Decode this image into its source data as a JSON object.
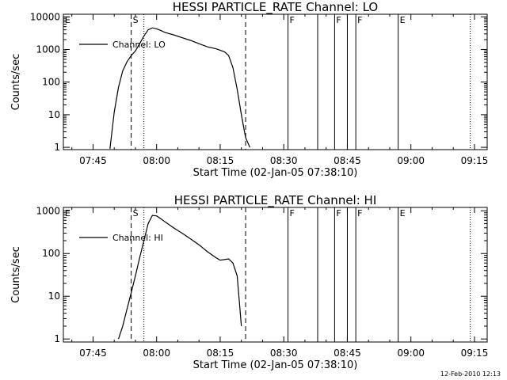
{
  "footer_stamp": "12-Feb-2010 12:13",
  "chart_data": [
    {
      "type": "line",
      "title": "HESSI PARTICLE_RATE Channel: LO",
      "xlabel": "Start Time (02-Jan-05 07:38:10)",
      "ylabel": "Counts/sec",
      "yscale": "log",
      "xlim": [
        "07:38",
        "09:18"
      ],
      "ylim": [
        0.85,
        12000
      ],
      "x_ticks": [
        "07:45",
        "08:00",
        "08:15",
        "08:30",
        "08:45",
        "09:00",
        "09:15"
      ],
      "y_ticks": [
        "1",
        "10",
        "100",
        "1000",
        "10000"
      ],
      "legend": {
        "placement": "top-left",
        "entries": [
          "Channel: LO"
        ]
      },
      "series": [
        {
          "name": "Channel: LO",
          "x": [
            "07:49",
            "07:50",
            "07:51",
            "07:52",
            "07:53",
            "07:54",
            "07:55",
            "07:56",
            "07:57",
            "07:58",
            "07:59",
            "08:00",
            "08:01",
            "08:02",
            "08:04",
            "08:06",
            "08:08",
            "08:10",
            "08:12",
            "08:14",
            "08:16",
            "08:17",
            "08:18",
            "08:19",
            "08:20",
            "08:21",
            "08:22"
          ],
          "y": [
            0.9,
            12,
            70,
            220,
            420,
            650,
            900,
            1500,
            2600,
            4000,
            4600,
            4300,
            3800,
            3300,
            2800,
            2300,
            1900,
            1500,
            1200,
            1050,
            850,
            650,
            280,
            60,
            10,
            2,
            1
          ]
        }
      ],
      "markers": [
        {
          "time": "07:38",
          "label": "E",
          "style": "dotted"
        },
        {
          "time": "07:54",
          "label": "S",
          "style": "dashed"
        },
        {
          "time": "07:57",
          "label": "",
          "style": "dotted"
        },
        {
          "time": "08:21",
          "label": "",
          "style": "dashed"
        },
        {
          "time": "08:31",
          "label": "F",
          "style": "solid"
        },
        {
          "time": "08:38",
          "label": "",
          "style": "solid"
        },
        {
          "time": "08:42",
          "label": "F",
          "style": "solid"
        },
        {
          "time": "08:45",
          "label": "",
          "style": "solid"
        },
        {
          "time": "08:47",
          "label": "F",
          "style": "solid"
        },
        {
          "time": "08:57",
          "label": "E",
          "style": "solid"
        },
        {
          "time": "09:14",
          "label": "",
          "style": "dotted"
        }
      ]
    },
    {
      "type": "line",
      "title": "HESSI PARTICLE_RATE Channel: HI",
      "xlabel": "Start Time (02-Jan-05 07:38:10)",
      "ylabel": "Counts/sec",
      "yscale": "log",
      "xlim": [
        "07:38",
        "09:18"
      ],
      "ylim": [
        0.85,
        1200
      ],
      "x_ticks": [
        "07:45",
        "08:00",
        "08:15",
        "08:30",
        "08:45",
        "09:00",
        "09:15"
      ],
      "y_ticks": [
        "1",
        "10",
        "100",
        "1000"
      ],
      "legend": {
        "placement": "top-left",
        "entries": [
          "Channel: HI"
        ]
      },
      "series": [
        {
          "name": "Channel: HI",
          "x": [
            "07:51",
            "07:52",
            "07:53",
            "07:54",
            "07:55",
            "07:56",
            "07:57",
            "07:58",
            "07:59",
            "08:00",
            "08:01",
            "08:02",
            "08:04",
            "08:06",
            "08:08",
            "08:10",
            "08:12",
            "08:14",
            "08:15",
            "08:16",
            "08:17",
            "08:18",
            "08:19",
            "08:20"
          ],
          "y": [
            1,
            2,
            5,
            12,
            30,
            80,
            200,
            500,
            780,
            760,
            650,
            550,
            400,
            300,
            220,
            160,
            110,
            80,
            70,
            72,
            75,
            60,
            30,
            2
          ]
        }
      ],
      "markers": [
        {
          "time": "07:38",
          "label": "E",
          "style": "dotted"
        },
        {
          "time": "07:54",
          "label": "S",
          "style": "dashed"
        },
        {
          "time": "07:57",
          "label": "",
          "style": "dotted"
        },
        {
          "time": "08:21",
          "label": "",
          "style": "dashed"
        },
        {
          "time": "08:31",
          "label": "F",
          "style": "solid"
        },
        {
          "time": "08:38",
          "label": "",
          "style": "solid"
        },
        {
          "time": "08:42",
          "label": "F",
          "style": "solid"
        },
        {
          "time": "08:45",
          "label": "",
          "style": "solid"
        },
        {
          "time": "08:47",
          "label": "F",
          "style": "solid"
        },
        {
          "time": "08:57",
          "label": "E",
          "style": "solid"
        },
        {
          "time": "09:14",
          "label": "",
          "style": "dotted"
        }
      ]
    }
  ]
}
